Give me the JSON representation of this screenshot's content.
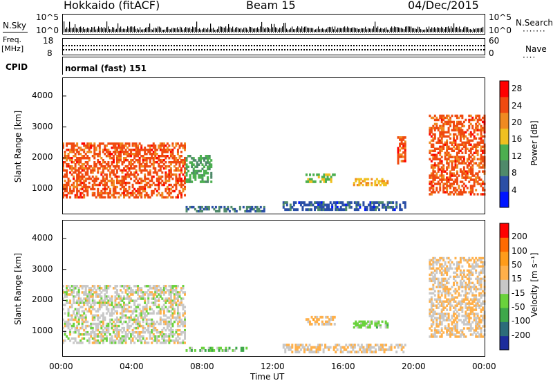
{
  "header": {
    "station": "Hokkaido (fitACF)",
    "beam": "Beam 15",
    "date": "04/Dec/2015"
  },
  "top_panels": {
    "nsky_label": "N.Sky",
    "nsky_ticks": [
      "10^5",
      "10^0"
    ],
    "nsearch_label": "N.Search",
    "nsearch_ticks": [
      "10^5",
      "10^0"
    ],
    "freq_label_1": "Freq.",
    "freq_label_2": "[MHz]",
    "freq_ticks": [
      "18",
      "8"
    ],
    "nave_label": "Nave",
    "nave_ticks": [
      "60",
      "0"
    ],
    "cpid_label": "CPID",
    "cpid_value": "normal (fast) 151"
  },
  "x_axis": {
    "ticks": [
      "00:00",
      "04:00",
      "08:00",
      "12:00",
      "16:00",
      "20:00",
      "00:00"
    ],
    "label": "Time UT"
  },
  "colors": {
    "power_scale": [
      "#0015ff",
      "#2b4fa6",
      "#4f8a6a",
      "#4caf50",
      "#f0c020",
      "#f08a20",
      "#f04a10",
      "#ff0000"
    ],
    "velocity_scale": [
      "#ff0000",
      "#ff6a00",
      "#ff9c1a",
      "#ffb04a",
      "#c8c8c8",
      "#6ad23c",
      "#3ea84a",
      "#2c6c7a",
      "#1c2c9c"
    ]
  },
  "chart_data": [
    {
      "type": "heatmap",
      "panel": "power",
      "xlabel": "Time UT",
      "ylabel": "Slant Range [km]",
      "xlim": [
        "00:00",
        "24:00"
      ],
      "ylim": [
        180,
        4600
      ],
      "yticks": [
        "1000",
        "2000",
        "3000",
        "4000"
      ],
      "colorbar": {
        "label": "Power [dB]",
        "ticks": [
          "4",
          "8",
          "12",
          "16",
          "20",
          "24",
          "28"
        ],
        "range": [
          0,
          30
        ]
      },
      "echo_regions": [
        {
          "t_start": 0.0,
          "t_end": 7.0,
          "range_start": 700,
          "range_end": 2500,
          "value": 24
        },
        {
          "t_start": 7.0,
          "t_end": 8.5,
          "range_start": 1200,
          "range_end": 2100,
          "value": 12
        },
        {
          "t_start": 7.0,
          "t_end": 11.5,
          "range_start": 250,
          "range_end": 450,
          "value": 8
        },
        {
          "t_start": 12.5,
          "t_end": 19.5,
          "range_start": 300,
          "range_end": 600,
          "value": 6
        },
        {
          "t_start": 13.8,
          "t_end": 15.5,
          "range_start": 1200,
          "range_end": 1500,
          "value": 14
        },
        {
          "t_start": 16.5,
          "t_end": 18.5,
          "range_start": 1100,
          "range_end": 1350,
          "value": 18
        },
        {
          "t_start": 19.0,
          "t_end": 19.5,
          "range_start": 1800,
          "range_end": 2700,
          "value": 24
        },
        {
          "t_start": 20.8,
          "t_end": 24.0,
          "range_start": 800,
          "range_end": 3400,
          "value": 24
        }
      ]
    },
    {
      "type": "heatmap",
      "panel": "velocity",
      "xlabel": "Time UT",
      "ylabel": "Slant Range [km]",
      "xlim": [
        "00:00",
        "24:00"
      ],
      "ylim": [
        180,
        4600
      ],
      "yticks": [
        "1000",
        "2000",
        "3000",
        "4000"
      ],
      "colorbar": {
        "label": "Velocity [m s⁻¹]",
        "ticks": [
          "200",
          "100",
          "50",
          "15",
          "-15",
          "-50",
          "-100",
          "-200"
        ],
        "range": [
          -250,
          250
        ]
      },
      "echo_regions": [
        {
          "t_start": 0.0,
          "t_end": 7.0,
          "range_start": 600,
          "range_end": 2500,
          "value": 0
        },
        {
          "t_start": 7.0,
          "t_end": 10.5,
          "range_start": 350,
          "range_end": 500,
          "value": -60
        },
        {
          "t_start": 12.5,
          "t_end": 19.5,
          "range_start": 300,
          "range_end": 600,
          "value": 25
        },
        {
          "t_start": 13.8,
          "t_end": 15.5,
          "range_start": 1200,
          "range_end": 1500,
          "value": 40
        },
        {
          "t_start": 16.5,
          "t_end": 18.5,
          "range_start": 1100,
          "range_end": 1350,
          "value": -40
        },
        {
          "t_start": 20.8,
          "t_end": 24.0,
          "range_start": 800,
          "range_end": 3400,
          "value": 30
        }
      ]
    }
  ]
}
